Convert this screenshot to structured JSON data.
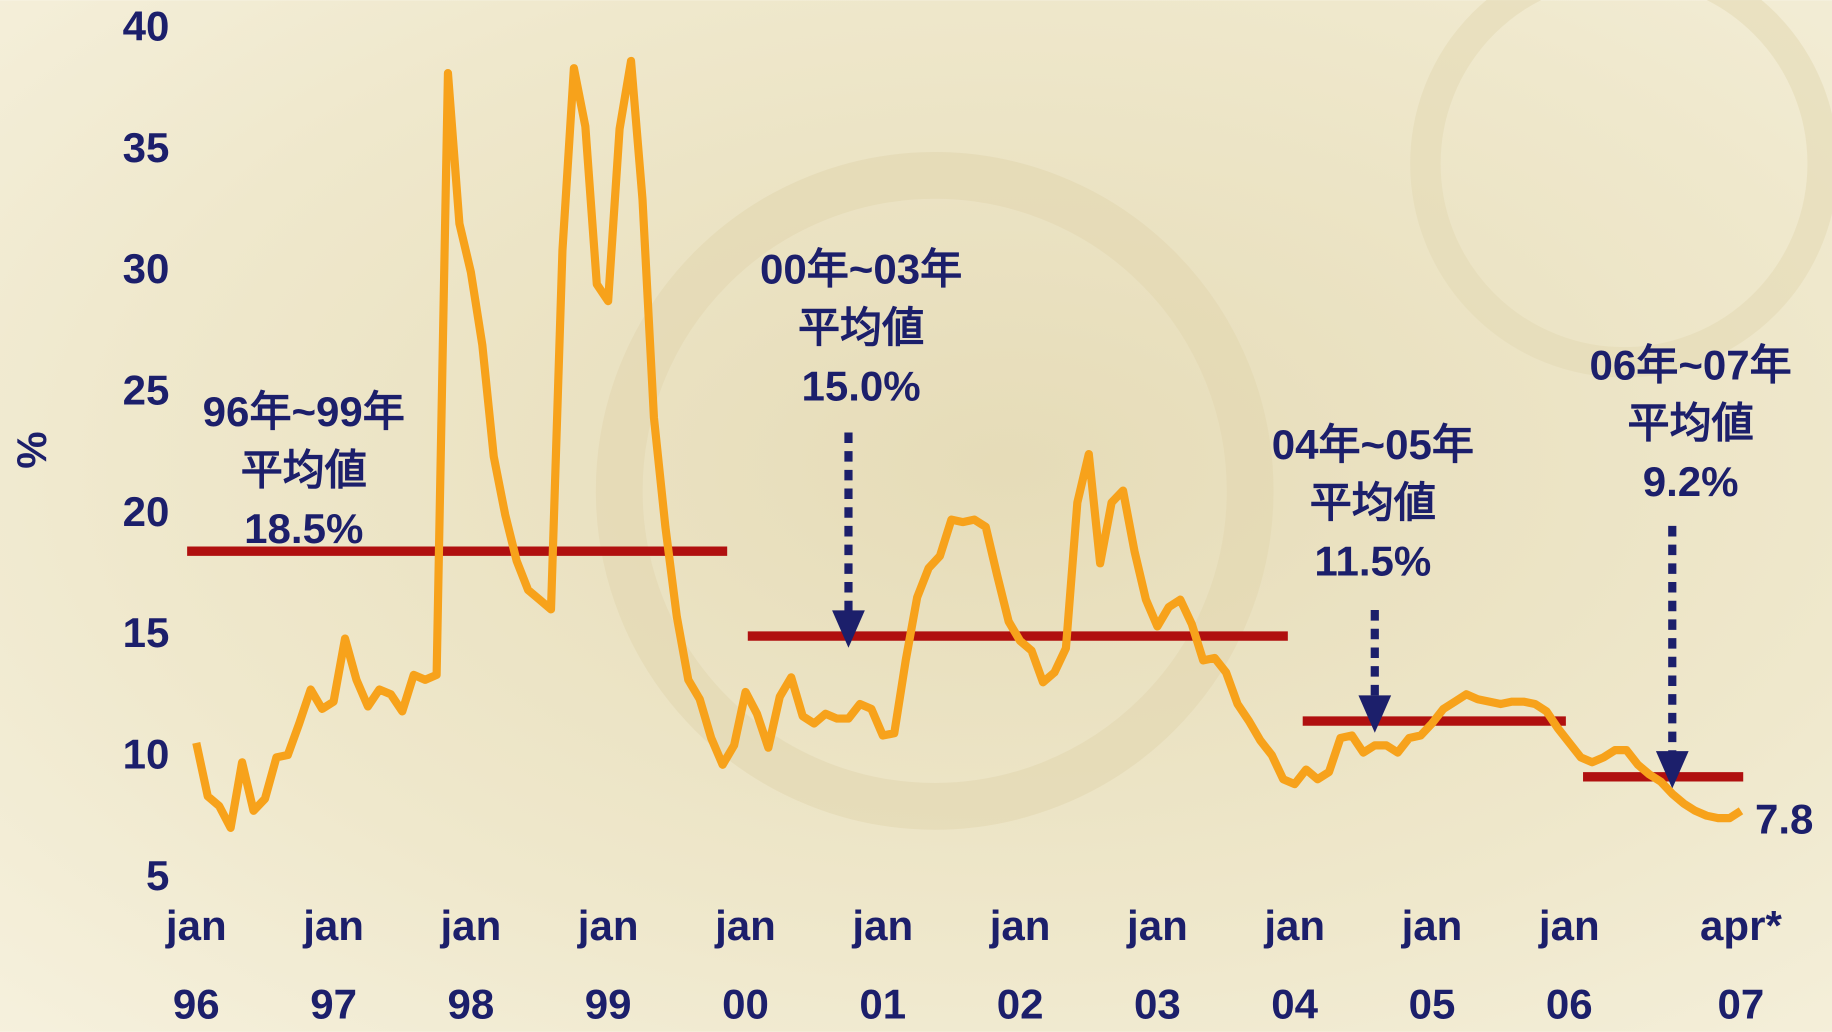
{
  "chart_data": {
    "type": "line",
    "y_label": "%",
    "ylim": [
      5,
      40
    ],
    "yticks": [
      5,
      10,
      15,
      20,
      25,
      30,
      35,
      40
    ],
    "categories": [
      "jan",
      null,
      null,
      null,
      null,
      null,
      null,
      null,
      null,
      null,
      null,
      null,
      "jan",
      null,
      null,
      null,
      null,
      null,
      null,
      null,
      null,
      null,
      null,
      null,
      "jan",
      null,
      null,
      null,
      null,
      null,
      null,
      null,
      null,
      null,
      null,
      null,
      "jan",
      null,
      null,
      null,
      null,
      null,
      null,
      null,
      null,
      null,
      null,
      null,
      "jan",
      null,
      null,
      null,
      null,
      null,
      null,
      null,
      null,
      null,
      null,
      null,
      "jan",
      null,
      null,
      null,
      null,
      null,
      null,
      null,
      null,
      null,
      null,
      null,
      "jan",
      null,
      null,
      null,
      null,
      null,
      null,
      null,
      null,
      null,
      null,
      null,
      "jan",
      null,
      null,
      null,
      null,
      null,
      null,
      null,
      null,
      null,
      null,
      null,
      "jan",
      null,
      null,
      null,
      null,
      null,
      null,
      null,
      null,
      null,
      null,
      null,
      "jan",
      null,
      null,
      null,
      null,
      null,
      null,
      null,
      null,
      null,
      null,
      null,
      "jan",
      null,
      null,
      null,
      null,
      null,
      null,
      null,
      null,
      null,
      null,
      null,
      null,
      null,
      null,
      "apr*"
    ],
    "years": [
      "96",
      null,
      null,
      null,
      null,
      null,
      null,
      null,
      null,
      null,
      null,
      null,
      "97",
      null,
      null,
      null,
      null,
      null,
      null,
      null,
      null,
      null,
      null,
      null,
      "98",
      null,
      null,
      null,
      null,
      null,
      null,
      null,
      null,
      null,
      null,
      null,
      "99",
      null,
      null,
      null,
      null,
      null,
      null,
      null,
      null,
      null,
      null,
      null,
      "00",
      null,
      null,
      null,
      null,
      null,
      null,
      null,
      null,
      null,
      null,
      null,
      "01",
      null,
      null,
      null,
      null,
      null,
      null,
      null,
      null,
      null,
      null,
      null,
      "02",
      null,
      null,
      null,
      null,
      null,
      null,
      null,
      null,
      null,
      null,
      null,
      "03",
      null,
      null,
      null,
      null,
      null,
      null,
      null,
      null,
      null,
      null,
      null,
      "04",
      null,
      null,
      null,
      null,
      null,
      null,
      null,
      null,
      null,
      null,
      null,
      "05",
      null,
      null,
      null,
      null,
      null,
      null,
      null,
      null,
      null,
      null,
      null,
      "06",
      null,
      null,
      null,
      null,
      null,
      null,
      null,
      null,
      null,
      null,
      null,
      null,
      null,
      null,
      "07"
    ],
    "series": [
      {
        "color": "#f7a21b",
        "values": [
          10.6,
          8.4,
          8.0,
          7.1,
          9.8,
          7.8,
          8.3,
          10.0,
          10.1,
          11.4,
          12.8,
          12.0,
          12.3,
          14.9,
          13.2,
          12.1,
          12.8,
          12.6,
          11.9,
          13.4,
          13.2,
          13.4,
          38.2,
          32.0,
          30.0,
          27.0,
          22.4,
          20.0,
          18.1,
          16.9,
          16.5,
          16.1,
          30.9,
          38.4,
          36.0,
          29.5,
          28.8,
          35.9,
          38.7,
          33.0,
          24.0,
          19.5,
          15.8,
          13.2,
          12.4,
          10.8,
          9.7,
          10.5,
          12.7,
          11.8,
          10.4,
          12.5,
          13.3,
          11.7,
          11.4,
          11.8,
          11.6,
          11.6,
          12.2,
          12.0,
          10.9,
          11.0,
          14.0,
          16.6,
          17.8,
          18.3,
          19.8,
          19.7,
          19.8,
          19.5,
          17.5,
          15.6,
          14.8,
          14.4,
          13.1,
          13.5,
          14.5,
          20.5,
          22.5,
          18.0,
          20.5,
          21.0,
          18.5,
          16.5,
          15.4,
          16.2,
          16.5,
          15.5,
          14.0,
          14.1,
          13.5,
          12.2,
          11.5,
          10.7,
          10.1,
          9.1,
          8.9,
          9.5,
          9.1,
          9.4,
          10.8,
          10.9,
          10.2,
          10.5,
          10.5,
          10.2,
          10.8,
          10.9,
          11.4,
          12.0,
          12.3,
          12.6,
          12.4,
          12.3,
          12.2,
          12.3,
          12.3,
          12.2,
          11.9,
          11.2,
          10.6,
          10.0,
          9.8,
          10.0,
          10.3,
          10.3,
          9.7,
          9.3,
          9.0,
          8.5,
          8.1,
          7.8,
          7.6,
          7.5,
          7.5,
          7.8
        ]
      }
    ],
    "average_color": "#b0100f",
    "averages": [
      {
        "period": "96年~99年",
        "label": "平均値",
        "value": 18.5,
        "value_label": "18.5%"
      },
      {
        "period": "00年~03年",
        "label": "平均値",
        "value": 15.0,
        "value_label": "15.0%"
      },
      {
        "period": "04年~05年",
        "label": "平均値",
        "value": 11.5,
        "value_label": "11.5%"
      },
      {
        "period": "06年~07年",
        "label": "平均値",
        "value": 9.2,
        "value_label": "9.2%"
      }
    ]
  }
}
